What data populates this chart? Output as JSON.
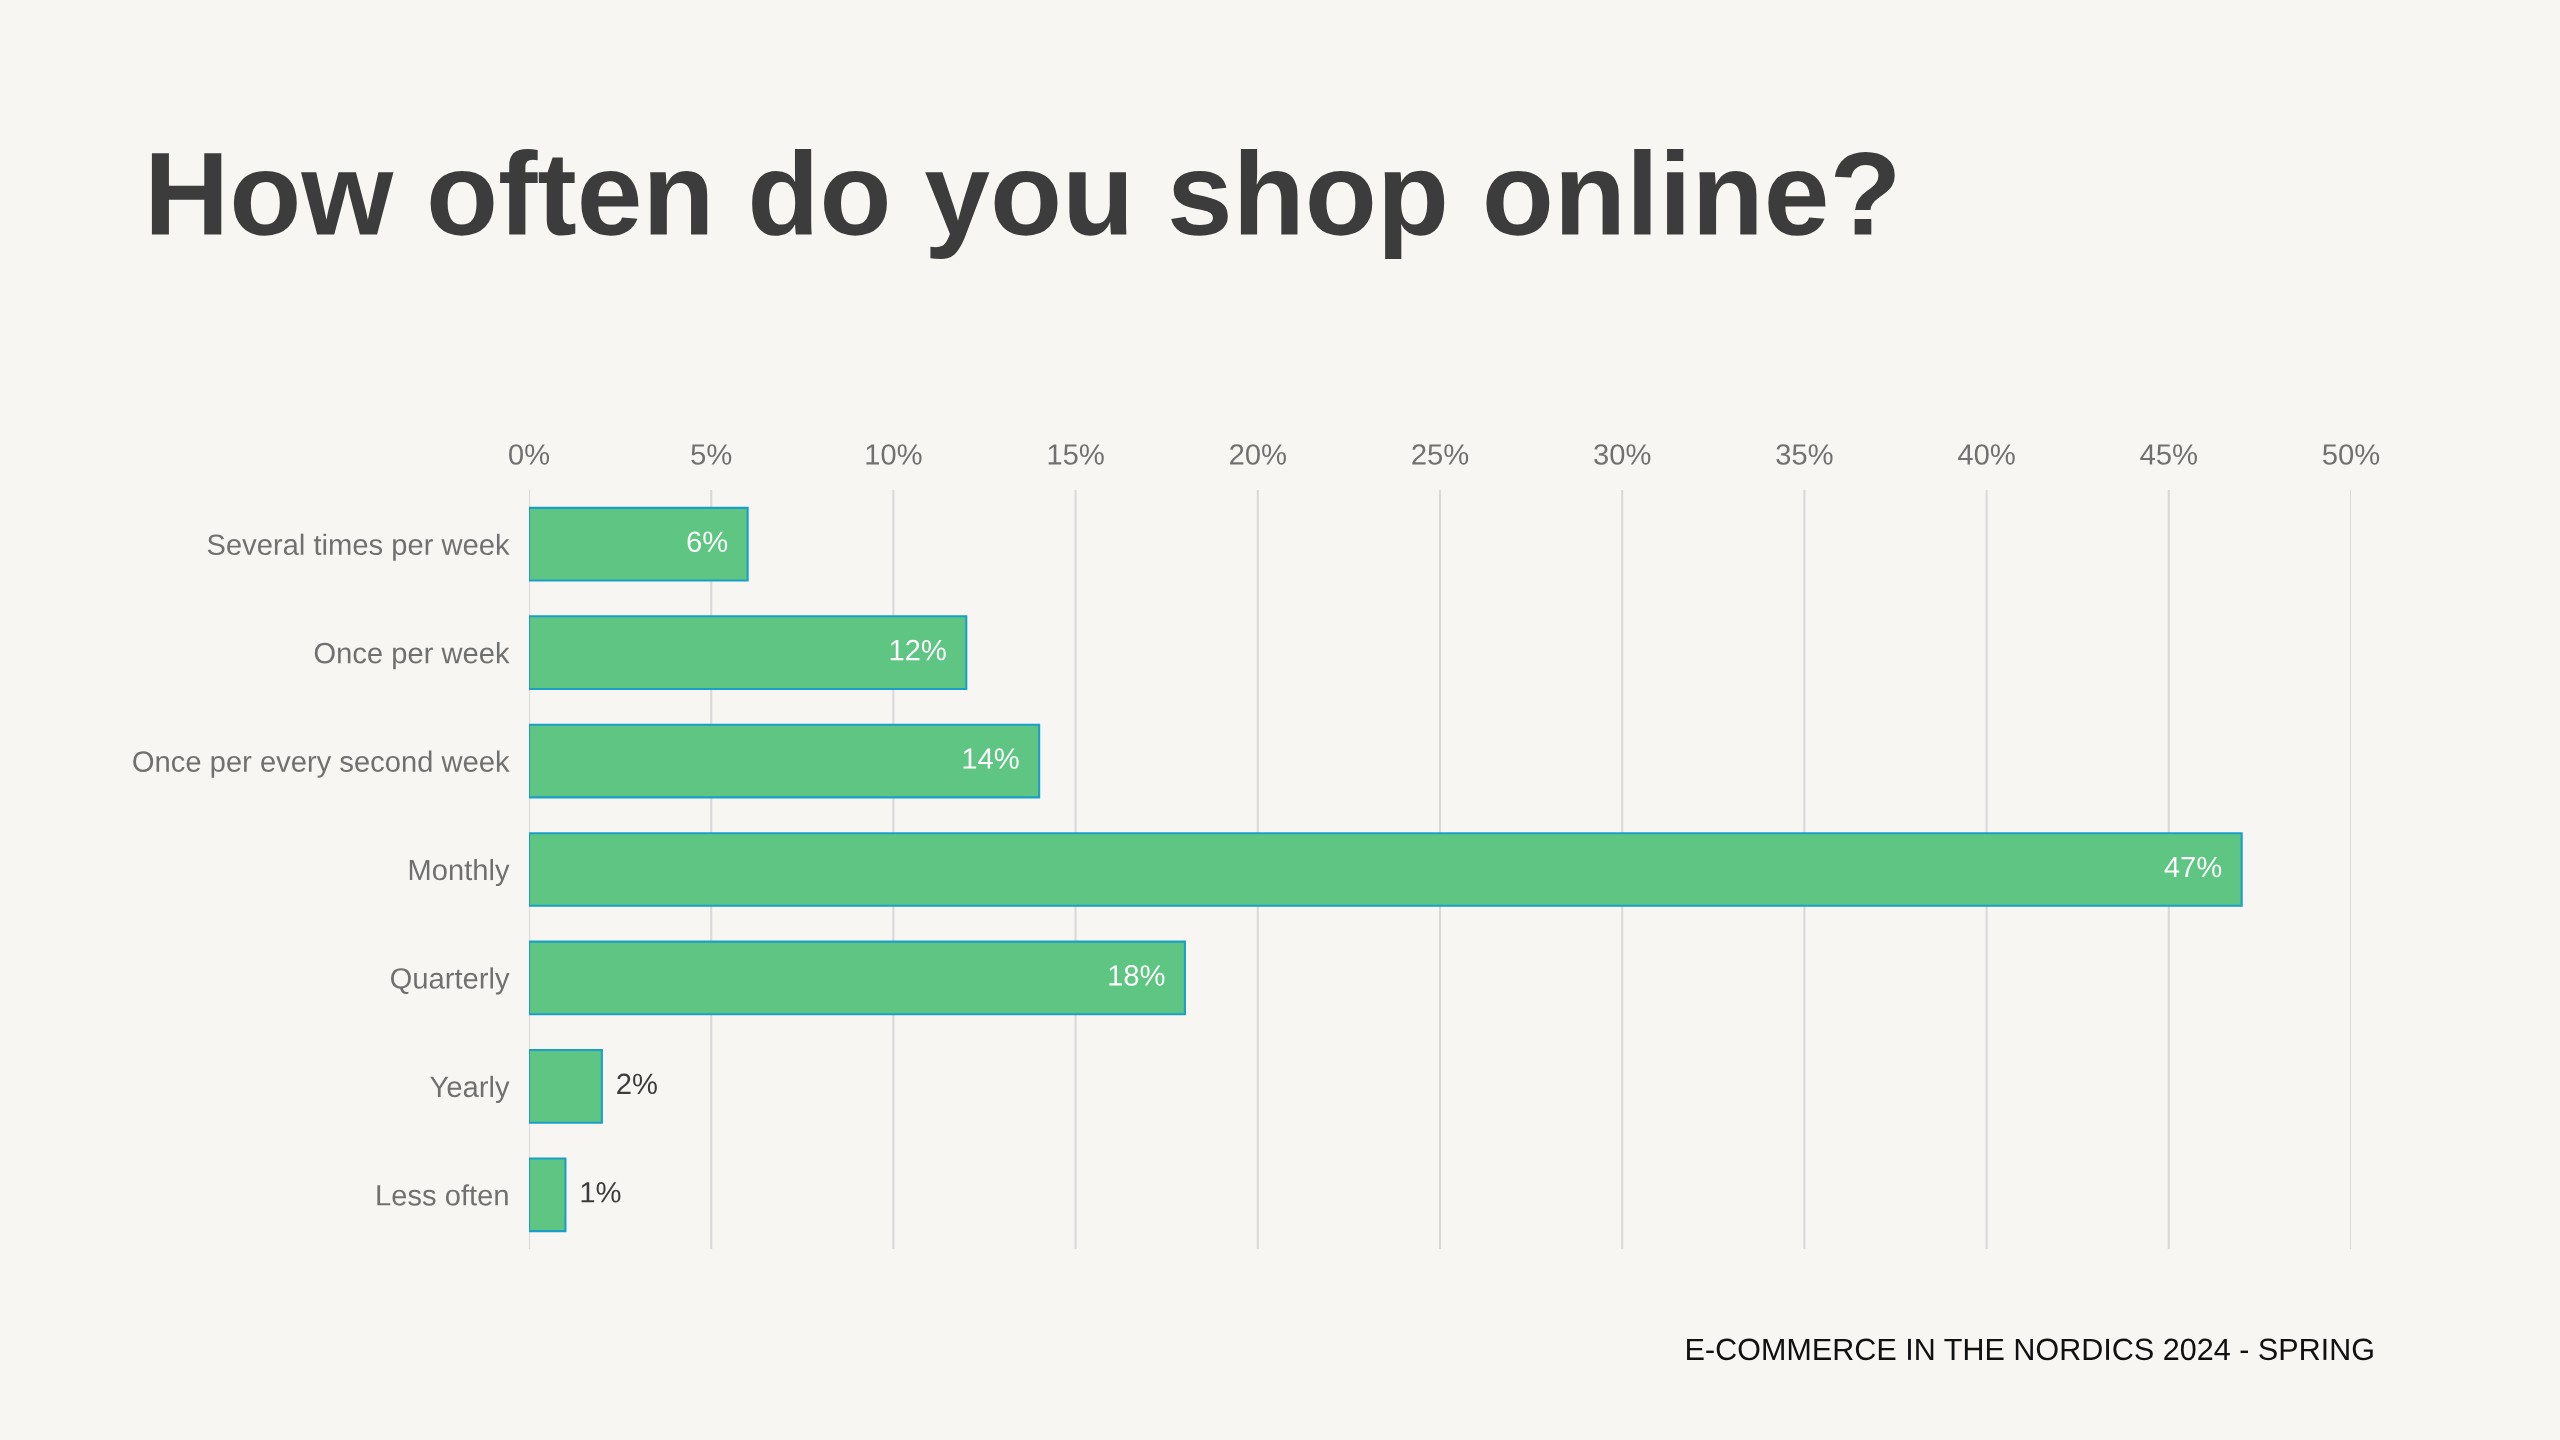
{
  "chart_data": {
    "type": "bar",
    "orientation": "horizontal",
    "title": "How often do you shop online?",
    "categories": [
      "Several times per week",
      "Once per week",
      "Once per every second week",
      "Monthly",
      "Quarterly",
      "Yearly",
      "Less often"
    ],
    "series": [
      {
        "color": "#5ec682",
        "values": [
          6,
          12,
          14,
          47,
          18,
          2,
          1
        ],
        "value_labels": [
          "6%",
          "12%",
          "14%",
          "47%",
          "18%",
          "2%",
          "1%"
        ]
      }
    ],
    "xlim": [
      0,
      50
    ],
    "xticks": [
      {
        "value": 0,
        "label": "0%"
      },
      {
        "value": 5,
        "label": "5%"
      },
      {
        "value": 10,
        "label": "10%"
      },
      {
        "value": 15,
        "label": "15%"
      },
      {
        "value": 20,
        "label": "20%"
      },
      {
        "value": 25,
        "label": "25%"
      },
      {
        "value": 30,
        "label": "30%"
      },
      {
        "value": 35,
        "label": "35%"
      },
      {
        "value": 40,
        "label": "40%"
      },
      {
        "value": 45,
        "label": "45%"
      },
      {
        "value": 50,
        "label": "50%"
      }
    ],
    "grid": "x",
    "legend": false,
    "annotations": [
      "E-COMMERCE IN THE NORDICS 2024 - SPRING"
    ]
  }
}
